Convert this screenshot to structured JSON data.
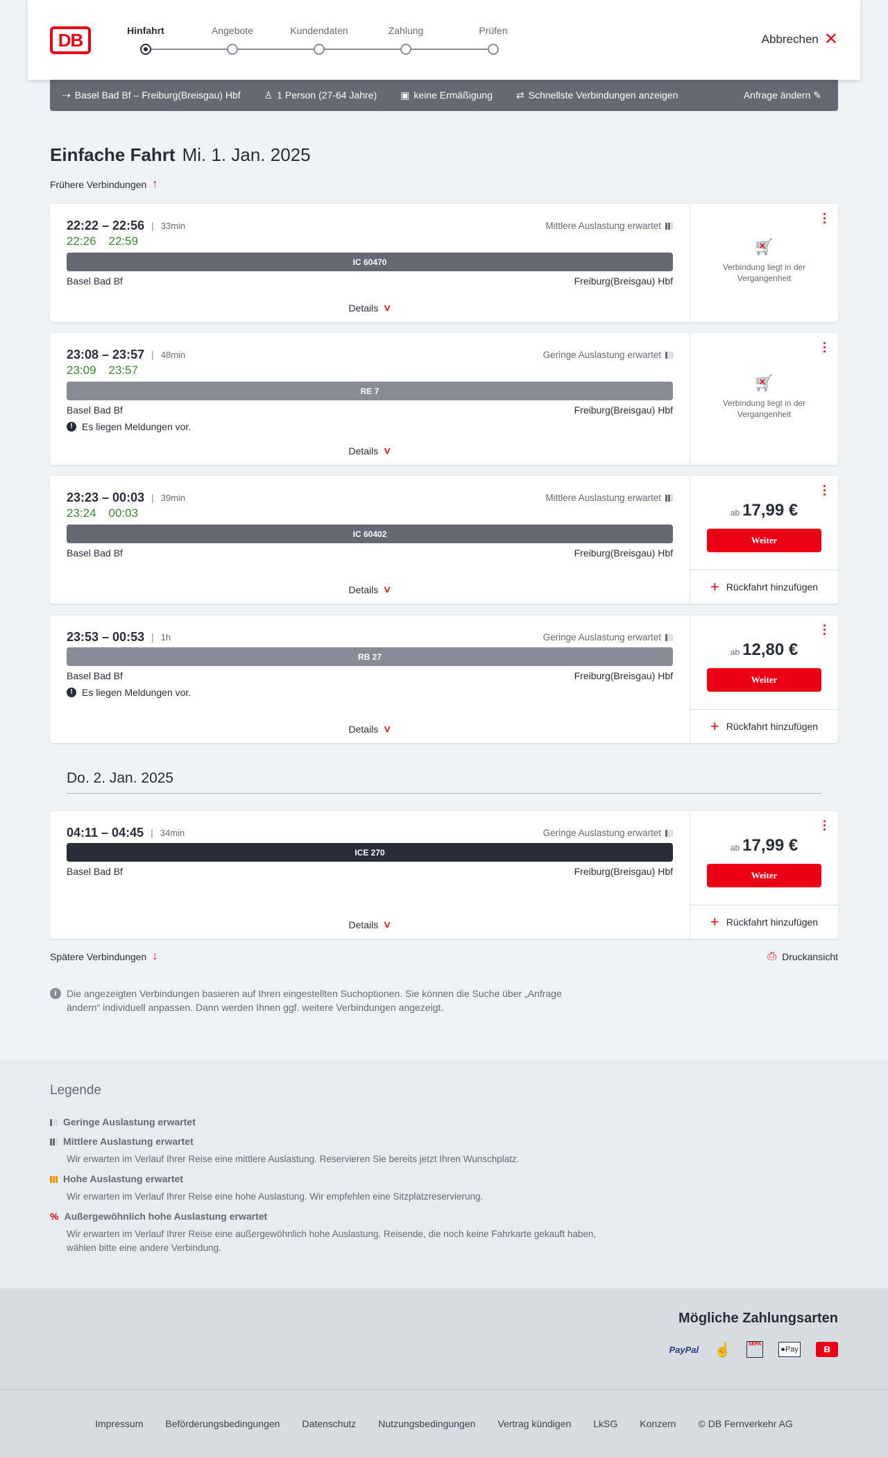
{
  "header": {
    "logo": "DB",
    "steps": [
      {
        "label": "Hinfahrt",
        "active": true
      },
      {
        "label": "Angebote",
        "active": false
      },
      {
        "label": "Kundendaten",
        "active": false
      },
      {
        "label": "Zahlung",
        "active": false
      },
      {
        "label": "Prüfen",
        "active": false
      }
    ],
    "cancel_label": "Abbrechen"
  },
  "search": {
    "route": "Basel Bad Bf – Freiburg(Breisgau) Hbf",
    "passengers": "1 Person (27-64 Jahre)",
    "discount": "keine Ermäßigung",
    "fastest": "Schnellste Verbindungen anzeigen",
    "edit": "Anfrage ändern"
  },
  "page": {
    "title": "Einfache Fahrt",
    "date": "Mi. 1. Jan. 2025",
    "earlier": "Frühere Verbindungen",
    "later": "Spätere Verbindungen",
    "print": "Druckansicht",
    "day2": "Do. 2. Jan. 2025",
    "info": "Die angezeigten Verbindungen basieren auf Ihren eingestellten Suchoptionen. Sie können die Suche über „Anfrage ändern“ individuell anpassen. Dann werden Ihnen ggf. weitere Verbindungen angezeigt."
  },
  "common": {
    "details": "Details",
    "past": "Verbindung liegt in der Vergangenheit",
    "price_prefix": "ab",
    "continue": "Weiter",
    "return": "Rückfahrt hinzufügen",
    "message": "Es liegen Meldungen vor."
  },
  "connections": [
    {
      "times": "22:22 – 22:56",
      "duration": "33min",
      "occupancy": "Mittlere Auslastung erwartet",
      "occ_level": 2,
      "rt_dep": "22:26",
      "rt_arr": "22:59",
      "train": "IC 60470",
      "train_color": "#646973",
      "from": "Basel Bad Bf",
      "to": "Freiburg(Breisgau) Hbf",
      "message": false,
      "past": true
    },
    {
      "times": "23:08 – 23:57",
      "duration": "48min",
      "occupancy": "Geringe Auslastung erwartet",
      "occ_level": 1,
      "rt_dep": "23:09",
      "rt_arr": "23:57",
      "train": "RE 7",
      "train_color": "#878c96",
      "from": "Basel Bad Bf",
      "to": "Freiburg(Breisgau) Hbf",
      "message": true,
      "past": true
    },
    {
      "times": "23:23 – 00:03",
      "duration": "39min",
      "occupancy": "Mittlere Auslastung erwartet",
      "occ_level": 2,
      "rt_dep": "23:24",
      "rt_arr": "00:03",
      "train": "IC 60402",
      "train_color": "#646973",
      "from": "Basel Bad Bf",
      "to": "Freiburg(Breisgau) Hbf",
      "message": false,
      "past": false,
      "price": "17,99 €"
    },
    {
      "times": "23:53 – 00:53",
      "duration": "1h",
      "occupancy": "Geringe Auslastung erwartet",
      "occ_level": 1,
      "train": "RB 27",
      "train_color": "#878c96",
      "from": "Basel Bad Bf",
      "to": "Freiburg(Breisgau) Hbf",
      "message": true,
      "past": false,
      "price": "12,80 €"
    },
    {
      "times": "04:11 – 04:45",
      "duration": "34min",
      "occupancy": "Geringe Auslastung erwartet",
      "occ_level": 1,
      "train": "ICE 270",
      "train_color": "#282d37",
      "from": "Basel Bad Bf",
      "to": "Freiburg(Breisgau) Hbf",
      "message": false,
      "past": false,
      "price": "17,99 €"
    }
  ],
  "legend": {
    "title": "Legende",
    "items": [
      {
        "title": "Geringe Auslastung erwartet",
        "desc": ""
      },
      {
        "title": "Mittlere Auslastung erwartet",
        "desc": "Wir erwarten im Verlauf Ihrer Reise eine mittlere Auslastung. Reservieren Sie bereits jetzt Ihren Wunschplatz."
      },
      {
        "title": "Hohe Auslastung erwartet",
        "desc": "Wir erwarten im Verlauf Ihrer Reise eine hohe Auslastung. Wir empfehlen eine Sitzplatzreservierung."
      },
      {
        "title": "Außergewöhnlich hohe Auslastung erwartet",
        "desc": "Wir erwarten im Verlauf Ihrer Reise eine außergewöhnlich hohe Auslastung. Reisende, die noch keine Fahrkarte gekauft haben, wählen bitte eine andere Verbindung."
      }
    ]
  },
  "payment": {
    "title": "Mögliche Zahlungsarten",
    "methods": [
      "PayPal",
      "Kreditkarte",
      "SEPA",
      "Pay",
      "DB Bonus"
    ]
  },
  "footer": {
    "links": [
      "Impressum",
      "Beförderungsbedingungen",
      "Datenschutz",
      "Nutzungsbedingungen",
      "Vertrag kündigen",
      "LkSG",
      "Konzern",
      "© DB Fernverkehr AG"
    ]
  },
  "colors": {
    "brand_red": "#ec0016",
    "realtime_green": "#408335",
    "high_occupancy": "#f39200"
  }
}
